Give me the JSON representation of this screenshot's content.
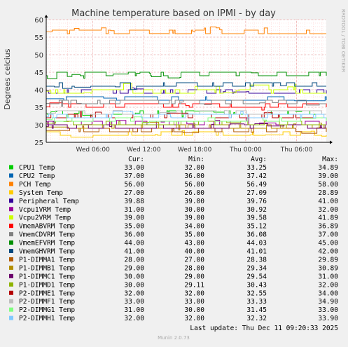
{
  "chart_data": {
    "type": "line",
    "title": "Machine temperature based on IPMI - by day",
    "ylabel": "Degrees celcius",
    "side_label": "RRDTOOL / TOBI OETIKER",
    "ylim": [
      25,
      60
    ],
    "yticks": [
      25,
      30,
      35,
      40,
      45,
      50,
      55,
      60
    ],
    "grid": true,
    "x_range_hours": [
      0,
      33
    ],
    "x_ticks": [
      {
        "label": "Wed 06:00",
        "hour": 5.5
      },
      {
        "label": "Wed 12:00",
        "hour": 11.5
      },
      {
        "label": "Wed 18:00",
        "hour": 17.5
      },
      {
        "label": "Thu 00:00",
        "hour": 23.5
      },
      {
        "label": "Thu 06:00",
        "hour": 29.5
      }
    ],
    "legend_headers": {
      "cur": "Cur:",
      "min": "Min:",
      "avg": "Avg:",
      "max": "Max:"
    },
    "series": [
      {
        "name": "CPU1 Temp",
        "color": "#00cc00",
        "cur": "33.00",
        "min": "32.00",
        "avg": "33.25",
        "max": "34.89"
      },
      {
        "name": "CPU2 Temp",
        "color": "#0066b3",
        "cur": "37.00",
        "min": "36.00",
        "avg": "37.42",
        "max": "39.00"
      },
      {
        "name": "PCH Temp",
        "color": "#ff8000",
        "cur": "56.00",
        "min": "56.00",
        "avg": "56.49",
        "max": "58.00"
      },
      {
        "name": "System Temp",
        "color": "#ffcc00",
        "cur": "27.00",
        "min": "26.00",
        "avg": "27.09",
        "max": "28.89"
      },
      {
        "name": "Peripheral Temp",
        "color": "#330099",
        "cur": "39.88",
        "min": "39.00",
        "avg": "39.76",
        "max": "41.00"
      },
      {
        "name": "Vcpu1VRM Temp",
        "color": "#990099",
        "cur": "31.00",
        "min": "30.00",
        "avg": "30.92",
        "max": "32.00"
      },
      {
        "name": "Vcpu2VRM Temp",
        "color": "#ccff00",
        "cur": "39.00",
        "min": "39.00",
        "avg": "39.58",
        "max": "41.89"
      },
      {
        "name": "VmemABVRM Temp",
        "color": "#ff0000",
        "cur": "35.00",
        "min": "34.00",
        "avg": "35.12",
        "max": "36.89"
      },
      {
        "name": "VmemCDVRM Temp",
        "color": "#808080",
        "cur": "36.00",
        "min": "35.00",
        "avg": "36.08",
        "max": "37.00"
      },
      {
        "name": "VmemEFVRM Temp",
        "color": "#008f00",
        "cur": "44.00",
        "min": "43.00",
        "avg": "44.03",
        "max": "45.00"
      },
      {
        "name": "VmemGHVRM Temp",
        "color": "#00487d",
        "cur": "41.00",
        "min": "40.00",
        "avg": "41.01",
        "max": "42.00"
      },
      {
        "name": "P1-DIMMA1 Temp",
        "color": "#b35a00",
        "cur": "28.00",
        "min": "27.00",
        "avg": "28.38",
        "max": "29.89"
      },
      {
        "name": "P1-DIMMB1 Temp",
        "color": "#b38f00",
        "cur": "29.00",
        "min": "28.00",
        "avg": "29.34",
        "max": "30.89"
      },
      {
        "name": "P1-DIMMC1 Temp",
        "color": "#6b006b",
        "cur": "30.00",
        "min": "29.00",
        "avg": "29.54",
        "max": "31.00"
      },
      {
        "name": "P1-DIMMD1 Temp",
        "color": "#8fb300",
        "cur": "30.00",
        "min": "29.11",
        "avg": "30.43",
        "max": "32.00"
      },
      {
        "name": "P2-DIMME1 Temp",
        "color": "#b30000",
        "cur": "32.00",
        "min": "32.00",
        "avg": "32.55",
        "max": "34.00"
      },
      {
        "name": "P2-DIMMF1 Temp",
        "color": "#bebebe",
        "cur": "33.00",
        "min": "33.00",
        "avg": "33.33",
        "max": "34.90"
      },
      {
        "name": "P2-DIMMG1 Temp",
        "color": "#80ff80",
        "cur": "31.00",
        "min": "30.00",
        "avg": "31.45",
        "max": "33.00"
      },
      {
        "name": "P2-DIMMH1 Temp",
        "color": "#80c9ff",
        "cur": "32.00",
        "min": "32.00",
        "avg": "32.32",
        "max": "33.90"
      }
    ],
    "last_update": "Last update: Thu Dec 11 09:20:33 2025",
    "footer": "Munin 2.0.73"
  }
}
